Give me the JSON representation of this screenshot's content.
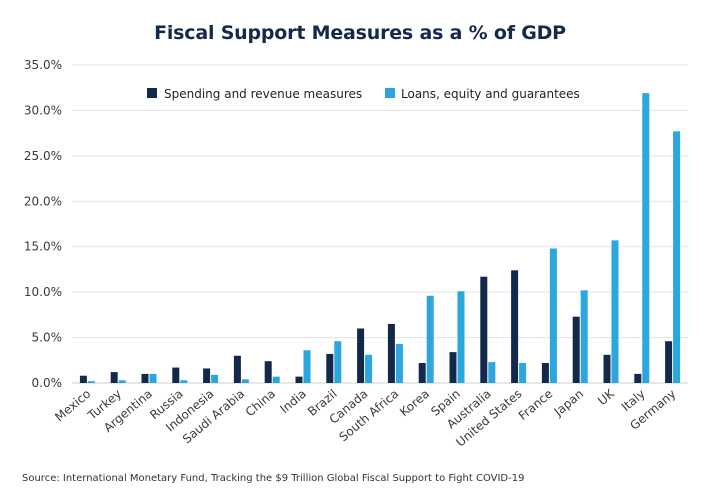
{
  "chart_data": {
    "type": "bar",
    "title": "Fiscal Support Measures as a % of GDP",
    "xlabel": "",
    "ylabel": "",
    "ylim": [
      0,
      35
    ],
    "yticks": [
      0,
      5,
      10,
      15,
      20,
      25,
      30,
      35
    ],
    "ytick_labels": [
      "0.0%",
      "5.0%",
      "10.0%",
      "15.0%",
      "20.0%",
      "25.0%",
      "30.0%",
      "35.0%"
    ],
    "grid": true,
    "legend_position": "top",
    "categories": [
      "Mexico",
      "Turkey",
      "Argentina",
      "Russia",
      "Indonesia",
      "Saudi Arabia",
      "China",
      "India",
      "Brazil",
      "Canada",
      "South Africa",
      "Korea",
      "Spain",
      "Australia",
      "United States",
      "France",
      "Japan",
      "UK",
      "Italy",
      "Germany"
    ],
    "series": [
      {
        "name": "Spending and revenue measures",
        "color": "#13294b",
        "values": [
          0.8,
          1.2,
          1.0,
          1.7,
          1.6,
          3.0,
          2.4,
          0.7,
          3.2,
          6.0,
          6.5,
          2.2,
          3.4,
          11.7,
          12.4,
          2.2,
          7.3,
          3.1,
          1.0,
          4.6
        ]
      },
      {
        "name": "Loans, equity and guarantees",
        "color": "#2ba6de",
        "values": [
          0.2,
          0.3,
          1.0,
          0.3,
          0.9,
          0.4,
          0.7,
          3.6,
          4.6,
          3.1,
          4.3,
          9.6,
          10.1,
          2.3,
          2.2,
          14.8,
          10.2,
          15.7,
          31.9,
          27.7
        ]
      }
    ],
    "source": "Source: International Monetary Fund, Tracking the $9 Trillion Global Fiscal Support to Fight COVID-19"
  }
}
